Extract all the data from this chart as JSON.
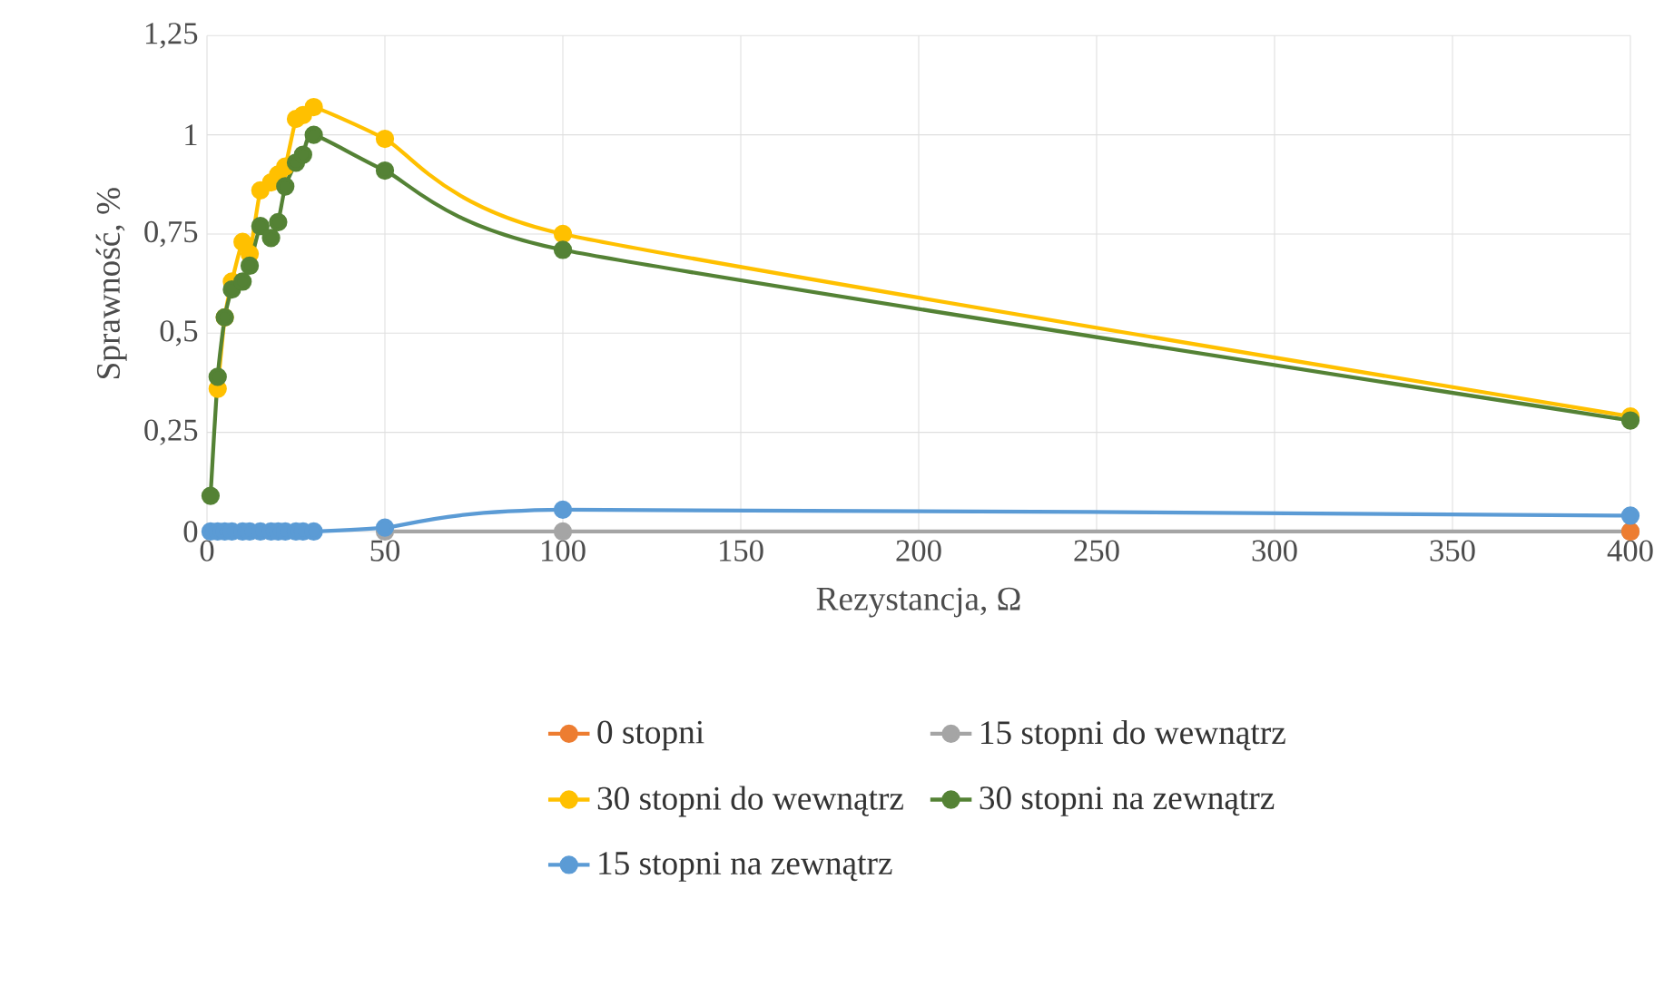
{
  "chart_data": {
    "type": "line",
    "xlabel": "Rezystancja, Ω",
    "ylabel": "Sprawność, %",
    "xlim": [
      0,
      400
    ],
    "ylim": [
      0,
      1.25
    ],
    "xticks": [
      0,
      50,
      100,
      150,
      200,
      250,
      300,
      350,
      400
    ],
    "yticks": [
      0,
      {
        "value": 0.25,
        "label": "0,25"
      },
      {
        "value": 0.5,
        "label": "0,5"
      },
      {
        "value": 0.75,
        "label": "0,75"
      },
      1,
      {
        "value": 1.25,
        "label": "1,25"
      }
    ],
    "grid": true,
    "legend": "bottom",
    "marker": "circle",
    "line_style": "solid",
    "series": [
      {
        "name": "0 stopni",
        "color": "#ed7d31",
        "x": [
          400
        ],
        "values": [
          0
        ]
      },
      {
        "name": "15 stopni do wewnątrz",
        "color": "#a5a5a5",
        "x": [
          50,
          100,
          400
        ],
        "values": [
          0,
          0,
          0
        ]
      },
      {
        "name": "30 stopni do wewnątrz",
        "color": "#ffc000",
        "x": [
          3,
          5,
          7,
          10,
          12,
          15,
          18,
          20,
          22,
          25,
          27,
          30,
          50,
          100,
          400
        ],
        "values": [
          0.36,
          0.54,
          0.63,
          0.73,
          0.7,
          0.86,
          0.88,
          0.9,
          0.92,
          1.04,
          1.05,
          1.07,
          0.99,
          0.75,
          0.29
        ]
      },
      {
        "name": "30 stopni na zewnątrz",
        "color": "#548235",
        "x": [
          1,
          3,
          5,
          7,
          10,
          12,
          15,
          18,
          20,
          22,
          25,
          27,
          30,
          50,
          100,
          400
        ],
        "values": [
          0.09,
          0.39,
          0.54,
          0.61,
          0.63,
          0.67,
          0.77,
          0.74,
          0.78,
          0.87,
          0.93,
          0.95,
          1.0,
          0.91,
          0.71,
          0.28
        ]
      },
      {
        "name": "15 stopni na zewnątrz",
        "color": "#5b9bd5",
        "x": [
          1,
          3,
          5,
          7,
          10,
          12,
          15,
          18,
          20,
          22,
          25,
          27,
          30,
          50,
          100,
          400
        ],
        "values": [
          0,
          0,
          0,
          0,
          0,
          0,
          0,
          0,
          0,
          0,
          0,
          0,
          0,
          0.01,
          0.055,
          0.04
        ]
      }
    ]
  }
}
